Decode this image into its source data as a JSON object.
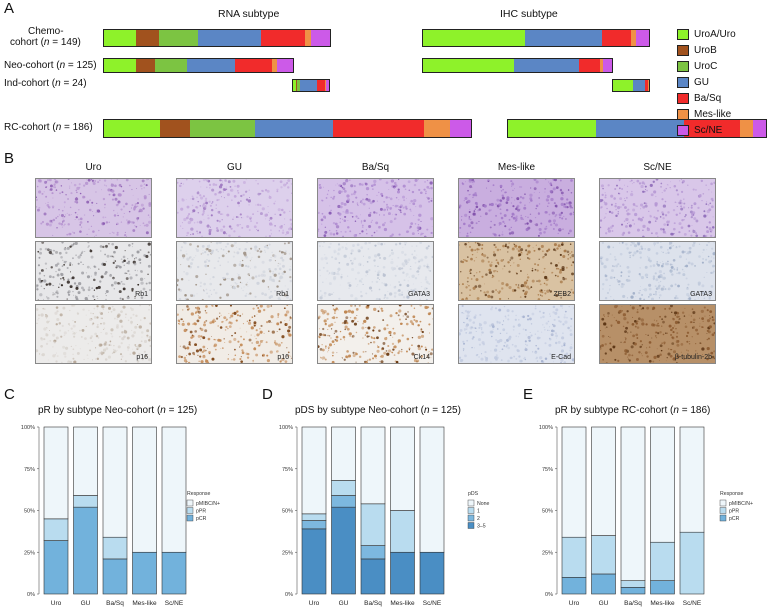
{
  "panel_letters": {
    "A": "A",
    "B": "B",
    "C": "C",
    "D": "D",
    "E": "E"
  },
  "panelA": {
    "rna_title": "RNA subtype",
    "ihc_title": "IHC subtype",
    "cohorts": [
      {
        "name": "Chemo-",
        "name2": "cohort (",
        "n": "n",
        "n_rest": " = 149)"
      },
      {
        "name": "Neo-cohort (",
        "n": "n",
        "n_rest": " = 125)"
      },
      {
        "name": "Ind-cohort (",
        "n": "n",
        "n_rest": " = 24)"
      },
      {
        "name": "RC-cohort (",
        "n": "n",
        "n_rest": " = 186)"
      }
    ],
    "legend": [
      {
        "label": "UroA/Uro",
        "color": "#8ef22a"
      },
      {
        "label": "UroB",
        "color": "#a1521e"
      },
      {
        "label": "UroC",
        "color": "#7cc442"
      },
      {
        "label": "GU",
        "color": "#5b86c5"
      },
      {
        "label": "Ba/Sq",
        "color": "#f12b2b"
      },
      {
        "label": "Mes-like",
        "color": "#ef9146"
      },
      {
        "label": "Sc/NE",
        "color": "#cc5ae8"
      }
    ],
    "rna_bars": [
      [
        31,
        23,
        38,
        62,
        43,
        6,
        19
      ],
      [
        31,
        19,
        31,
        47,
        36,
        5,
        16
      ],
      [
        2,
        1,
        2,
        12,
        5,
        1,
        2
      ],
      [
        45,
        24,
        53,
        63,
        73,
        21,
        17
      ]
    ],
    "ihc_bars": [
      [
        72,
        0,
        0,
        55,
        20,
        4,
        9
      ],
      [
        60,
        0,
        0,
        43,
        14,
        2,
        6
      ],
      [
        13,
        0,
        0,
        8,
        2,
        1,
        0
      ],
      [
        60,
        0,
        0,
        60,
        38,
        9,
        9
      ]
    ]
  },
  "panelB": {
    "columns": [
      "Uro",
      "GU",
      "Ba/Sq",
      "Mes-like",
      "Sc/NE"
    ],
    "row2": [
      "Rb1",
      "Rb1",
      "GATA3",
      "ZEB2",
      "GATA3"
    ],
    "row3": [
      "p16",
      "p16",
      "Ck14",
      "E-Cad",
      "β-tubulin-2b"
    ]
  },
  "panelC": {
    "title_pre": "pR by subtype Neo-cohort (",
    "n": "n",
    "title_post": " = 125)",
    "y_ticks": [
      "0%",
      "25%",
      "50%",
      "75%",
      "100%"
    ],
    "legend_title": "Response",
    "legend": [
      {
        "label": "pMIBC/N+",
        "color": "#eef6fa"
      },
      {
        "label": "pPR",
        "color": "#b9dcef"
      },
      {
        "label": "pCR",
        "color": "#72b2dc"
      }
    ]
  },
  "panelD": {
    "title_pre": "pDS by subtype Neo-cohort (",
    "n": "n",
    "title_post": " = 125)",
    "y_ticks": [
      "0%",
      "25%",
      "50%",
      "75%",
      "100%"
    ],
    "legend_title": "pDS",
    "legend": [
      {
        "label": "None",
        "color": "#eef6fa"
      },
      {
        "label": "1",
        "color": "#b9dcef"
      },
      {
        "label": "2",
        "color": "#7db8df"
      },
      {
        "label": "3–5",
        "color": "#4a8ec4"
      }
    ]
  },
  "panelE": {
    "title_pre": "pR by subtype RC-cohort (",
    "n": "n",
    "title_post": " = 186)",
    "y_ticks": [
      "0%",
      "25%",
      "50%",
      "75%",
      "100%"
    ],
    "legend_title": "Response",
    "legend": [
      {
        "label": "pMIBC/N+",
        "color": "#eef6fa"
      },
      {
        "label": "pPR",
        "color": "#b9dcef"
      },
      {
        "label": "pCR",
        "color": "#72b2dc"
      }
    ]
  },
  "chart_data": [
    {
      "type": "bar",
      "title": "pR by subtype Neo-cohort (n = 125)",
      "categories": [
        "Uro",
        "GU",
        "Ba/Sq",
        "Mes-like",
        "Sc/NE"
      ],
      "ylim": [
        0,
        100
      ],
      "stacked": true,
      "legend_title": "Response",
      "series": [
        {
          "name": "pCR",
          "values": [
            32,
            52,
            21,
            25,
            25
          ],
          "color": "#72b2dc"
        },
        {
          "name": "pPR",
          "values": [
            13,
            7,
            13,
            0,
            0
          ],
          "color": "#b9dcef"
        },
        {
          "name": "pMIBC/N+",
          "values": [
            55,
            41,
            66,
            75,
            75
          ],
          "color": "#eef6fa"
        }
      ]
    },
    {
      "type": "bar",
      "title": "pDS by subtype Neo-cohort (n = 125)",
      "categories": [
        "Uro",
        "GU",
        "Ba/Sq",
        "Mes-like",
        "Sc/NE"
      ],
      "ylim": [
        0,
        100
      ],
      "stacked": true,
      "legend_title": "pDS",
      "series": [
        {
          "name": "3–5",
          "values": [
            39,
            52,
            21,
            25,
            25
          ],
          "color": "#4a8ec4"
        },
        {
          "name": "2",
          "values": [
            5,
            7,
            8,
            0,
            0
          ],
          "color": "#7db8df"
        },
        {
          "name": "1",
          "values": [
            4,
            9,
            25,
            25,
            0
          ],
          "color": "#b9dcef"
        },
        {
          "name": "None",
          "values": [
            52,
            32,
            46,
            50,
            75
          ],
          "color": "#eef6fa"
        }
      ]
    },
    {
      "type": "bar",
      "title": "pR by subtype RC-cohort (n = 186)",
      "categories": [
        "Uro",
        "GU",
        "Ba/Sq",
        "Mes-like",
        "Sc/NE"
      ],
      "ylim": [
        0,
        100
      ],
      "stacked": true,
      "legend_title": "Response",
      "series": [
        {
          "name": "pCR",
          "values": [
            10,
            12,
            4,
            8,
            0
          ],
          "color": "#72b2dc"
        },
        {
          "name": "pPR",
          "values": [
            24,
            23,
            4,
            23,
            37
          ],
          "color": "#b9dcef"
        },
        {
          "name": "pMIBC/N+",
          "values": [
            66,
            65,
            92,
            69,
            63
          ],
          "color": "#eef6fa"
        }
      ]
    }
  ]
}
